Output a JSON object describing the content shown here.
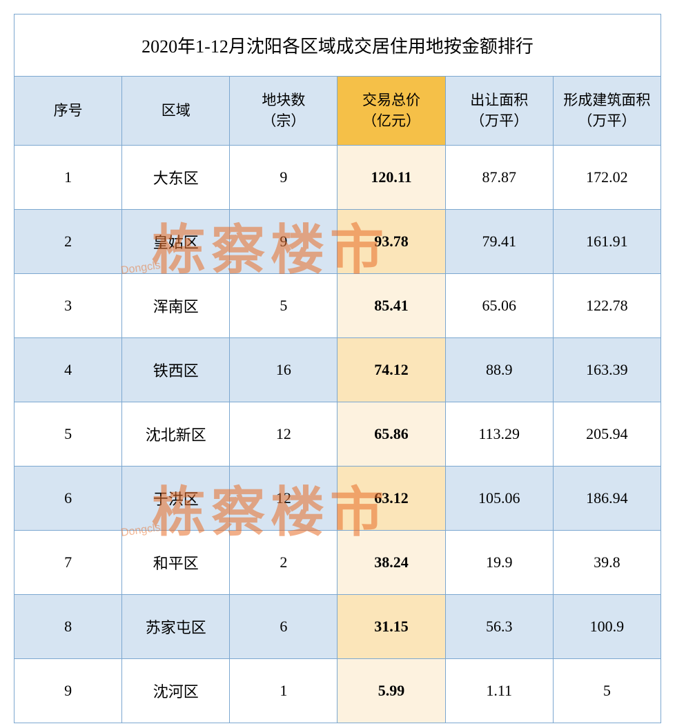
{
  "title": "2020年1-12月沈阳各区域成交居住用地按金额排行",
  "columns": {
    "seq": "序号",
    "region": "区域",
    "plots": "地块数\n（宗）",
    "price": "交易总价\n（亿元）",
    "land_area": "出让面积\n（万平）",
    "build_area": "形成建筑面积\n（万平）"
  },
  "rows": [
    {
      "seq": "1",
      "region": "大东区",
      "plots": "9",
      "price": "120.11",
      "land_area": "87.87",
      "build_area": "172.02"
    },
    {
      "seq": "2",
      "region": "皇姑区",
      "plots": "9",
      "price": "93.78",
      "land_area": "79.41",
      "build_area": "161.91"
    },
    {
      "seq": "3",
      "region": "浑南区",
      "plots": "5",
      "price": "85.41",
      "land_area": "65.06",
      "build_area": "122.78"
    },
    {
      "seq": "4",
      "region": "铁西区",
      "plots": "16",
      "price": "74.12",
      "land_area": "88.9",
      "build_area": "163.39"
    },
    {
      "seq": "5",
      "region": "沈北新区",
      "plots": "12",
      "price": "65.86",
      "land_area": "113.29",
      "build_area": "205.94"
    },
    {
      "seq": "6",
      "region": "于洪区",
      "plots": "12",
      "price": "63.12",
      "land_area": "105.06",
      "build_area": "186.94"
    },
    {
      "seq": "7",
      "region": "和平区",
      "plots": "2",
      "price": "38.24",
      "land_area": "19.9",
      "build_area": "39.8"
    },
    {
      "seq": "8",
      "region": "苏家屯区",
      "plots": "6",
      "price": "31.15",
      "land_area": "56.3",
      "build_area": "100.9"
    },
    {
      "seq": "9",
      "region": "沈河区",
      "plots": "1",
      "price": "5.99",
      "land_area": "1.11",
      "build_area": "5"
    }
  ],
  "watermark": {
    "text": "栋察楼市",
    "sub": "Dongcls"
  },
  "colors": {
    "border": "#7ba7d0",
    "header_default": "#d6e4f2",
    "header_highlight": "#f5c048",
    "row_odd": "#ffffff",
    "row_even": "#d6e4f2",
    "cell_highlight_odd": "#fdf2df",
    "cell_highlight_even": "#fbe5b9",
    "watermark_color": "rgba(232, 110, 40, 0.55)"
  }
}
